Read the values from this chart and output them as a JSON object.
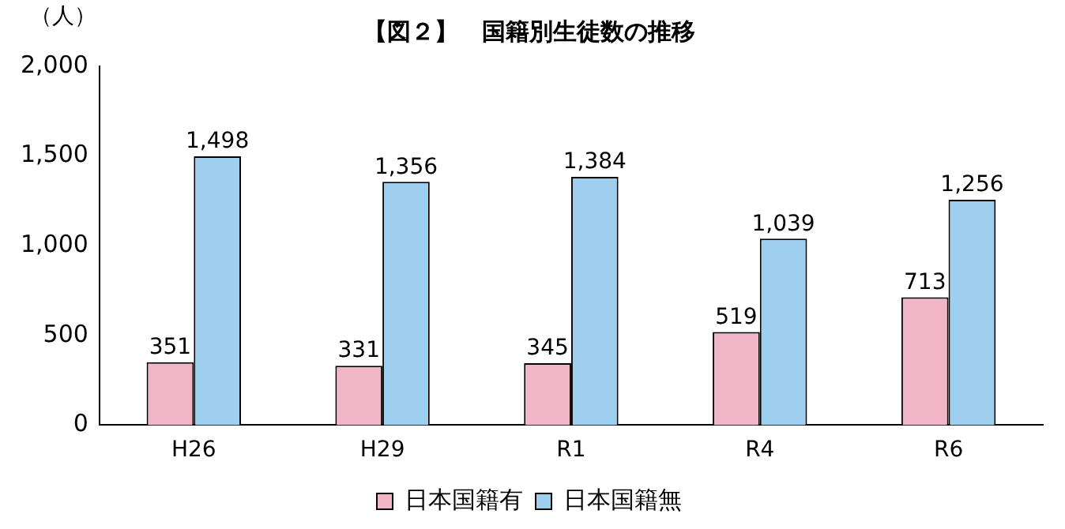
{
  "chart_data": {
    "type": "bar",
    "title": "【図２】　国籍別生徒数の推移",
    "ylabel": "（人）",
    "categories": [
      "H26",
      "H29",
      "R1",
      "R4",
      "R6"
    ],
    "series": [
      {
        "name": "日本国籍有",
        "color": "#f0b6c8",
        "values": [
          351,
          331,
          345,
          519,
          713
        ],
        "value_labels": [
          "351",
          "331",
          "345",
          "519",
          "713"
        ]
      },
      {
        "name": "日本国籍無",
        "color": "#9fcfee",
        "values": [
          1498,
          1356,
          1384,
          1039,
          1256
        ],
        "value_labels": [
          "1,498",
          "1,356",
          "1,384",
          "1,039",
          "1,256"
        ]
      }
    ],
    "ylim": [
      0,
      2000
    ],
    "yticks": [
      0,
      {
        "value": 500,
        "label": "500"
      },
      {
        "value": 1000,
        "label": "1,000"
      },
      {
        "value": 1500,
        "label": "1,500"
      },
      {
        "value": 2000,
        "label": "2,000"
      }
    ],
    "grid": false,
    "legend": "bottom"
  }
}
